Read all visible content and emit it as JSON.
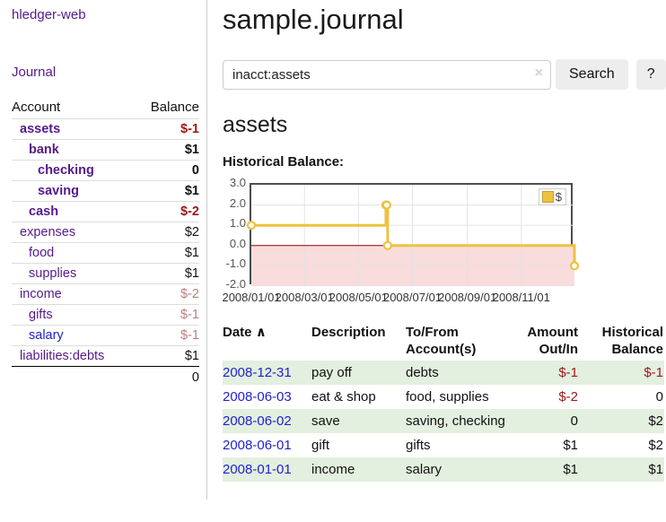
{
  "app": {
    "title": "hledger-web",
    "nav_journal": "Journal"
  },
  "sidebar": {
    "table_headers": {
      "account": "Account",
      "balance": "Balance"
    },
    "accounts": [
      {
        "name": "assets",
        "balance": "$-1"
      },
      {
        "name": "bank",
        "balance": "$1"
      },
      {
        "name": "checking",
        "balance": "0"
      },
      {
        "name": "saving",
        "balance": "$1"
      },
      {
        "name": "cash",
        "balance": "$-2"
      },
      {
        "name": "expenses",
        "balance": "$2"
      },
      {
        "name": "food",
        "balance": "$1"
      },
      {
        "name": "supplies",
        "balance": "$1"
      },
      {
        "name": "income",
        "balance": "$-2"
      },
      {
        "name": "gifts",
        "balance": "$-1"
      },
      {
        "name": "salary",
        "balance": "$-1"
      },
      {
        "name": "liabilities:debts",
        "balance": "$1"
      }
    ],
    "total": "0"
  },
  "header": {
    "title": "sample.journal"
  },
  "search": {
    "query": "inacct:assets",
    "clear_icon": "×",
    "search_label": "Search",
    "help_label": "?"
  },
  "account_page": {
    "title": "assets",
    "chart_label": "Historical Balance:"
  },
  "chart_data": {
    "type": "line",
    "title": "Historical Balance:",
    "step": true,
    "series": [
      {
        "name": "$",
        "color": "#edc240",
        "points": [
          [
            "2008-01-01",
            1
          ],
          [
            "2008-06-01",
            2
          ],
          [
            "2008-06-02",
            2
          ],
          [
            "2008-06-03",
            0
          ],
          [
            "2008-12-31",
            -1
          ]
        ]
      }
    ],
    "x_domain": [
      "2008-01-01",
      "2008-12-31"
    ],
    "x_tick_labels": [
      "2008/01/01",
      "2008/03/01",
      "2008/05/01",
      "2008/07/01",
      "2008/09/01",
      "2008/11/01"
    ],
    "y_ticks": [
      3,
      2,
      1,
      0,
      -1,
      -2
    ],
    "y_tick_labels": [
      "3.0",
      "2.0",
      "1.0",
      "0.0",
      "-1.0",
      "-2.0"
    ],
    "ylim": [
      -2,
      3
    ],
    "legend_position": "top-right",
    "grid_on": true,
    "grid_color": "#e3e3e3",
    "negative_region_color": "#f9dcdc",
    "zero_line_color": "#8b0000"
  },
  "register": {
    "sort_indicator": "∧",
    "headers": {
      "date": "Date",
      "description": "Description",
      "accounts": "To/From Account(s)",
      "amount": "Amount Out/In",
      "balance": "Historical Balance"
    },
    "rows": [
      {
        "date": "2008-12-31",
        "description": "pay off",
        "accounts": "debts",
        "amount": "$-1",
        "balance": "$-1"
      },
      {
        "date": "2008-06-03",
        "description": "eat & shop",
        "accounts": "food, supplies",
        "amount": "$-2",
        "balance": "0"
      },
      {
        "date": "2008-06-02",
        "description": "save",
        "accounts": "saving, checking",
        "amount": "0",
        "balance": "$2"
      },
      {
        "date": "2008-06-01",
        "description": "gift",
        "accounts": "gifts",
        "amount": "$1",
        "balance": "$2"
      },
      {
        "date": "2008-01-01",
        "description": "income",
        "accounts": "salary",
        "amount": "$1",
        "balance": "$1"
      }
    ]
  },
  "colors": {
    "link_visited_purple": "#551a8b",
    "link_blue": "#2222cc",
    "negative_red": "#9a1a1a",
    "negative_faded": "#b97f7f",
    "row_stripe_green": "#e3efdf",
    "chart_line_gold": "#edc240",
    "chart_negative_region": "#f9dcdc",
    "chart_zero_line": "#8b0000"
  }
}
